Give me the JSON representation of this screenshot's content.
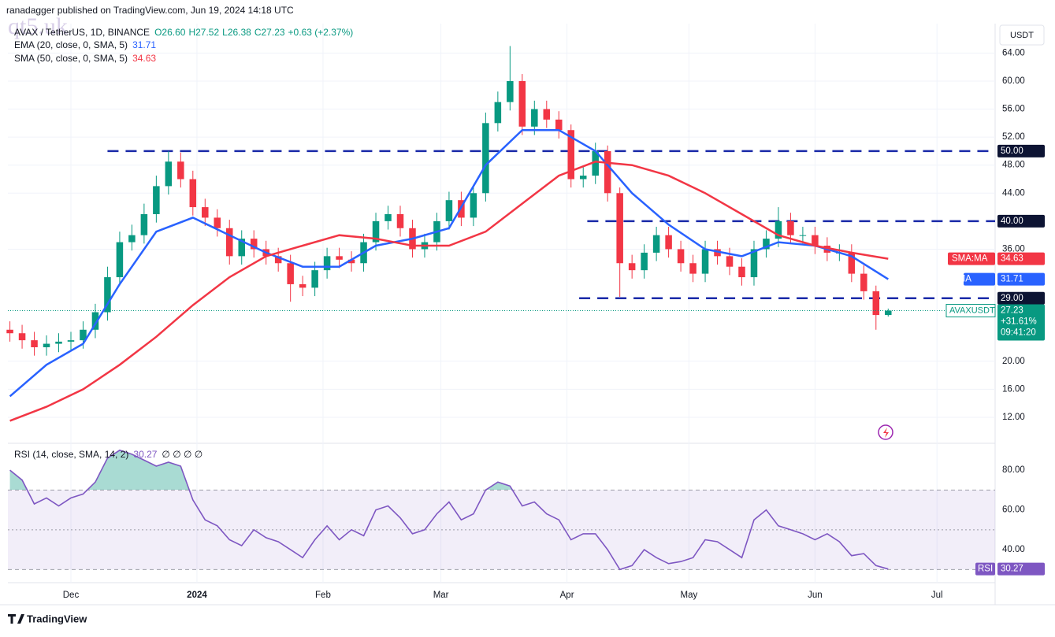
{
  "header": {
    "publisher": "ranadagger published on TradingView.com, Jun 19, 2024 14:18 UTC",
    "watermark": "qt5.uk",
    "currency": "USDT"
  },
  "footer": "TradingView",
  "chart_data": [
    {
      "type": "candlestick",
      "symbol": "AVAX / TetherUS, 1D, BINANCE",
      "ohlc_text": [
        "O26.60",
        "H27.52",
        "L26.38",
        "C27.23",
        "+0.63 (+2.37%)"
      ],
      "x": [
        -15,
        -12,
        -9,
        -6,
        -3,
        0,
        3,
        6,
        9,
        12,
        15,
        18,
        21,
        24,
        27,
        30,
        33,
        36,
        39,
        42,
        45,
        48,
        51,
        54,
        57,
        60,
        63,
        66,
        69,
        72,
        75,
        78,
        81,
        84,
        87,
        90,
        93,
        96,
        99,
        102,
        105,
        108,
        111,
        114,
        117,
        120,
        123,
        126,
        129,
        132,
        135,
        138,
        141,
        144,
        147,
        150,
        153,
        156,
        159,
        162,
        165,
        168,
        171,
        174,
        177,
        180,
        183,
        186,
        189,
        192,
        195,
        198,
        201
      ],
      "open": [
        24.5,
        24.0,
        23.0,
        22.0,
        22.5,
        22.8,
        23.0,
        24.5,
        27.0,
        32.0,
        37.0,
        38.0,
        41.0,
        45.0,
        48.5,
        46.0,
        42.0,
        40.5,
        39.0,
        35.0,
        37.5,
        36.0,
        35.0,
        34.0,
        31.0,
        30.5,
        33.0,
        35.0,
        34.5,
        34.0,
        37.0,
        40.0,
        41.0,
        39.0,
        36.0,
        37.0,
        40.0,
        43.0,
        40.5,
        44.0,
        54.0,
        57.0,
        60.0,
        53.5,
        56.0,
        54.5,
        53.0,
        46.0,
        46.5,
        50.0,
        44.0,
        34.0,
        33.0,
        35.5,
        38.0,
        36.0,
        34.0,
        32.5,
        36.0,
        35.0,
        33.5,
        32.0,
        36.0,
        37.5,
        40.0,
        38.0,
        38.0,
        36.5,
        35.5,
        35.5,
        32.5,
        30.0,
        26.6
      ],
      "high": [
        25.7,
        25.2,
        24.2,
        23.7,
        24.0,
        24.2,
        25.7,
        28.2,
        33.5,
        38.5,
        39.5,
        42.5,
        46.5,
        50.0,
        49.8,
        47.2,
        43.2,
        41.7,
        40.2,
        38.7,
        38.7,
        37.2,
        36.2,
        35.2,
        32.2,
        34.2,
        36.2,
        36.2,
        35.7,
        38.2,
        41.2,
        42.2,
        42.2,
        40.2,
        38.2,
        41.2,
        44.2,
        44.2,
        45.2,
        55.5,
        58.5,
        65.0,
        61.0,
        57.2,
        57.2,
        55.7,
        53.8,
        47.7,
        51.2,
        50.8,
        44.8,
        35.2,
        36.7,
        39.2,
        39.2,
        37.2,
        35.2,
        37.2,
        37.2,
        36.2,
        34.7,
        37.2,
        38.7,
        42.0,
        41.2,
        39.2,
        39.2,
        37.7,
        36.7,
        36.7,
        33.7,
        30.8,
        27.52
      ],
      "low": [
        22.8,
        21.8,
        20.8,
        20.8,
        21.3,
        21.6,
        21.8,
        23.3,
        25.8,
        30.8,
        35.8,
        36.8,
        39.8,
        43.8,
        44.8,
        40.8,
        39.3,
        37.8,
        33.8,
        33.8,
        34.8,
        33.8,
        32.8,
        28.5,
        29.3,
        29.3,
        31.8,
        33.3,
        32.8,
        32.8,
        35.8,
        38.8,
        37.8,
        34.8,
        34.8,
        35.8,
        38.8,
        39.3,
        39.3,
        42.8,
        52.8,
        55.8,
        52.3,
        52.3,
        53.3,
        51.8,
        44.8,
        44.8,
        45.3,
        42.8,
        29.2,
        31.8,
        31.8,
        34.3,
        34.8,
        32.8,
        31.3,
        31.3,
        33.8,
        32.3,
        30.8,
        30.8,
        34.8,
        36.3,
        36.8,
        36.8,
        35.3,
        34.3,
        34.3,
        31.3,
        28.8,
        24.5,
        26.38
      ],
      "close": [
        24.0,
        23.0,
        22.0,
        22.5,
        22.8,
        23.0,
        24.5,
        27.0,
        32.0,
        37.0,
        38.0,
        41.0,
        45.0,
        48.5,
        46.0,
        42.0,
        40.5,
        39.0,
        35.0,
        37.5,
        36.0,
        35.0,
        34.0,
        31.0,
        30.5,
        33.0,
        35.0,
        34.5,
        34.0,
        37.0,
        40.0,
        41.0,
        39.0,
        36.0,
        37.0,
        40.0,
        43.0,
        40.5,
        44.0,
        54.0,
        57.0,
        60.0,
        53.5,
        56.0,
        54.5,
        53.0,
        46.0,
        46.5,
        50.0,
        44.0,
        34.0,
        33.0,
        35.5,
        38.0,
        36.0,
        34.0,
        32.5,
        36.0,
        35.0,
        33.5,
        32.0,
        36.0,
        37.5,
        40.0,
        38.0,
        38.0,
        36.5,
        35.5,
        35.5,
        32.5,
        30.0,
        26.6,
        27.23
      ],
      "up_color": "#089981",
      "down_color": "#f23645",
      "xlim": [
        -15.5,
        227.3
      ],
      "xticks": [
        {
          "value": 0,
          "label": "Dec"
        },
        {
          "value": 31,
          "label": "2024"
        },
        {
          "value": 62,
          "label": "Feb"
        },
        {
          "value": 91,
          "label": "Mar"
        },
        {
          "value": 122,
          "label": "Apr"
        },
        {
          "value": 152,
          "label": "May"
        },
        {
          "value": 183,
          "label": "Jun"
        },
        {
          "value": 213,
          "label": "Jul"
        }
      ],
      "ylim": [
        8.4,
        68.2
      ],
      "yticks": [
        {
          "value": 12,
          "label": "12.00"
        },
        {
          "value": 16,
          "label": "16.00"
        },
        {
          "value": 20,
          "label": "20.00"
        },
        {
          "value": 36,
          "label": "36.00"
        },
        {
          "value": 44,
          "label": "44.00"
        },
        {
          "value": 48,
          "label": "48.00"
        },
        {
          "value": 52,
          "label": "52.00"
        },
        {
          "value": 56,
          "label": "56.00"
        },
        {
          "value": 60,
          "label": "60.00"
        },
        {
          "value": 64,
          "label": "64.00"
        }
      ],
      "grid": true,
      "series": [
        {
          "name": "EMA (20, close, 0, SMA, 5)",
          "tag": "EMA",
          "color": "#2962ff",
          "x": [
            -15,
            -6,
            3,
            12,
            21,
            30,
            39,
            48,
            57,
            66,
            75,
            84,
            93,
            102,
            111,
            120,
            129,
            138,
            147,
            156,
            165,
            174,
            183,
            192,
            201
          ],
          "values": [
            15.0,
            19.5,
            22.5,
            31,
            38.5,
            40.5,
            38,
            35.5,
            33.5,
            33.5,
            36.5,
            37.5,
            39,
            48,
            53,
            53,
            50,
            44,
            39.5,
            36,
            35,
            37,
            36.5,
            35,
            31.71
          ]
        },
        {
          "name": "SMA (50, close, 0, SMA, 5)",
          "tag": "SMA:MA",
          "color": "#f23645",
          "x": [
            -15,
            -6,
            3,
            12,
            21,
            30,
            39,
            48,
            57,
            66,
            75,
            84,
            93,
            102,
            111,
            120,
            129,
            138,
            147,
            156,
            165,
            174,
            183,
            192,
            201
          ],
          "values": [
            11.5,
            13.5,
            16,
            19.5,
            23.5,
            28,
            32,
            35,
            36.5,
            38,
            37.5,
            36.5,
            36.5,
            38.5,
            42.5,
            46.5,
            48.5,
            48,
            46.5,
            44,
            41,
            38,
            36.5,
            35.5,
            34.63
          ]
        }
      ],
      "levels": [
        {
          "value": 50,
          "label": "50.00",
          "start": 9
        },
        {
          "value": 40,
          "label": "40.00",
          "start": 127
        },
        {
          "value": 29,
          "label": "29.00",
          "start": 125
        }
      ],
      "level_color": "#1a2aa8",
      "price_tag": {
        "name": "AVAXUSDT",
        "change": "+31.61%",
        "countdown": "09:41:20"
      }
    },
    {
      "type": "line",
      "title": "RSI (14, close, SMA, 14, 2)",
      "extra": "∅ ∅ ∅ ∅",
      "tag": "RSI",
      "x": [
        -15,
        -12,
        -9,
        -6,
        -3,
        0,
        3,
        6,
        9,
        12,
        15,
        18,
        21,
        24,
        27,
        30,
        33,
        36,
        39,
        42,
        45,
        48,
        51,
        54,
        57,
        60,
        63,
        66,
        69,
        72,
        75,
        78,
        81,
        84,
        87,
        90,
        93,
        96,
        99,
        102,
        105,
        108,
        111,
        114,
        117,
        120,
        123,
        126,
        129,
        132,
        135,
        138,
        141,
        144,
        147,
        150,
        153,
        156,
        159,
        162,
        165,
        168,
        171,
        174,
        177,
        180,
        183,
        186,
        189,
        192,
        195,
        198,
        201
      ],
      "values": [
        80,
        75,
        63,
        66,
        62,
        66,
        68,
        74,
        86,
        90,
        88,
        85,
        82,
        84,
        82,
        65,
        55,
        52,
        45,
        42,
        50,
        46,
        44,
        40,
        36,
        45,
        52,
        45,
        50,
        47,
        60,
        62,
        56,
        48,
        50,
        58,
        64,
        55,
        58,
        70,
        74,
        72,
        62,
        64,
        58,
        55,
        45,
        48,
        48,
        40,
        30,
        32,
        40,
        36,
        33,
        34,
        36,
        45,
        44,
        40,
        36,
        55,
        60,
        52,
        50,
        48,
        45,
        48,
        44,
        37,
        38,
        32,
        30.27
      ],
      "color": "#7e57c2",
      "ylim": [
        23.4,
        92.7
      ],
      "yticks": [
        {
          "value": 40,
          "label": "40.00"
        },
        {
          "value": 60,
          "label": "60.00"
        },
        {
          "value": 80,
          "label": "80.00"
        }
      ],
      "bands": [
        70,
        50,
        30
      ]
    }
  ]
}
